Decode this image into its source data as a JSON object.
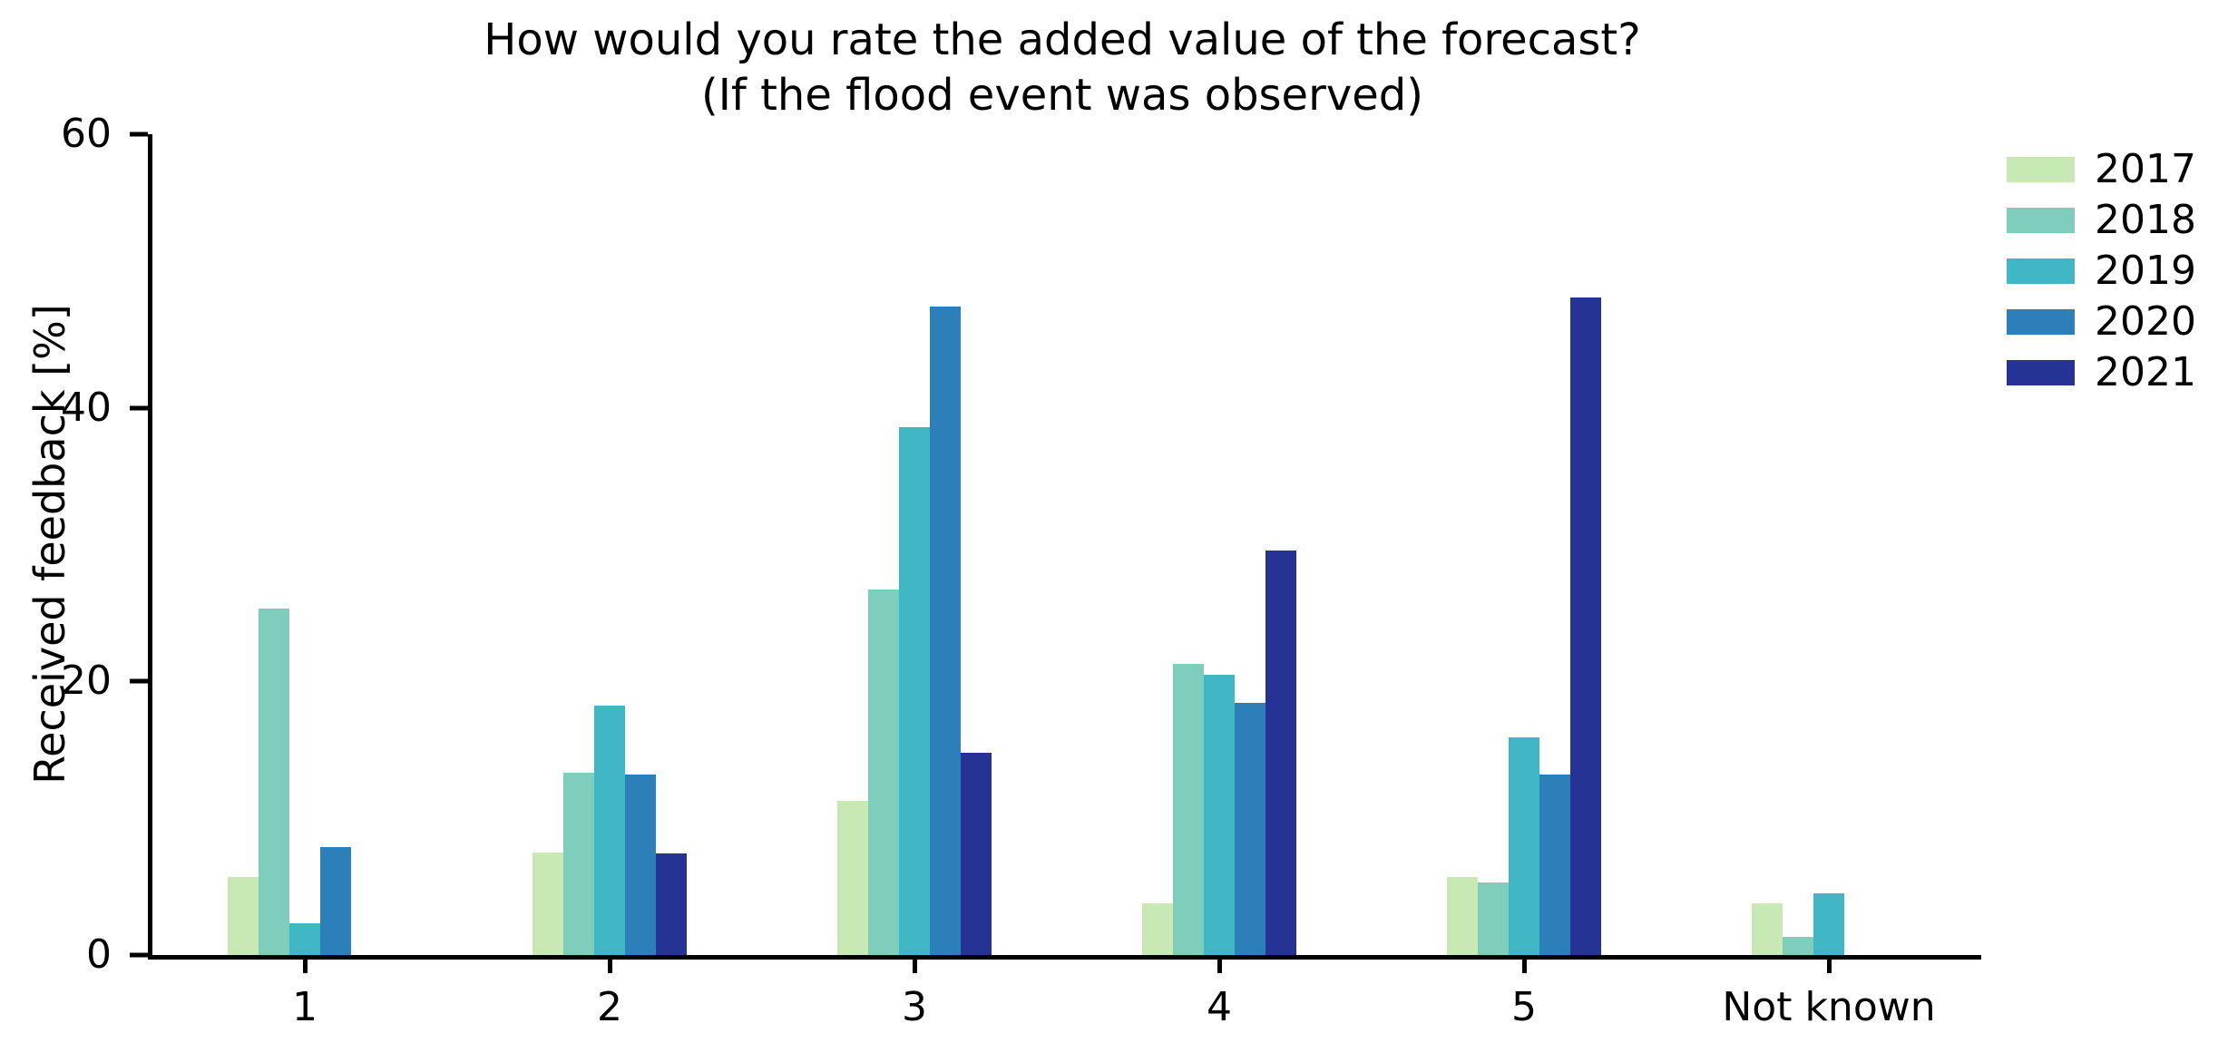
{
  "chart": {
    "title_line1": "How would you rate the added value of the forecast?",
    "title_line2": "(If the flood event was observed)",
    "ylabel": "Received feedback [%]"
  },
  "chart_data": {
    "type": "bar",
    "title": "How would you rate the added value of the forecast? (If the flood event was observed)",
    "xlabel": "",
    "ylabel": "Received feedback [%]",
    "categories": [
      "1",
      "2",
      "3",
      "4",
      "5",
      "Not known"
    ],
    "series": [
      {
        "name": "2017",
        "color": "#c7e9b4",
        "values": [
          5.7,
          7.5,
          11.3,
          3.8,
          5.7,
          3.8
        ]
      },
      {
        "name": "2018",
        "color": "#7fcdbb",
        "values": [
          25.3,
          13.3,
          26.7,
          21.3,
          5.3,
          1.3
        ]
      },
      {
        "name": "2019",
        "color": "#41b6c4",
        "values": [
          2.3,
          18.2,
          38.6,
          20.5,
          15.9,
          4.5
        ]
      },
      {
        "name": "2020",
        "color": "#2c7fb8",
        "values": [
          7.9,
          13.2,
          47.4,
          18.4,
          13.2,
          0
        ]
      },
      {
        "name": "2021",
        "color": "#253494",
        "values": [
          0,
          7.4,
          14.8,
          29.6,
          48.1,
          0
        ]
      }
    ],
    "ylim": [
      0,
      60
    ],
    "yticks": [
      0,
      20,
      40,
      60
    ],
    "grid": false,
    "legend_position": "upper right outside",
    "axis_color": "#000000",
    "background_color": "#ffffff"
  }
}
